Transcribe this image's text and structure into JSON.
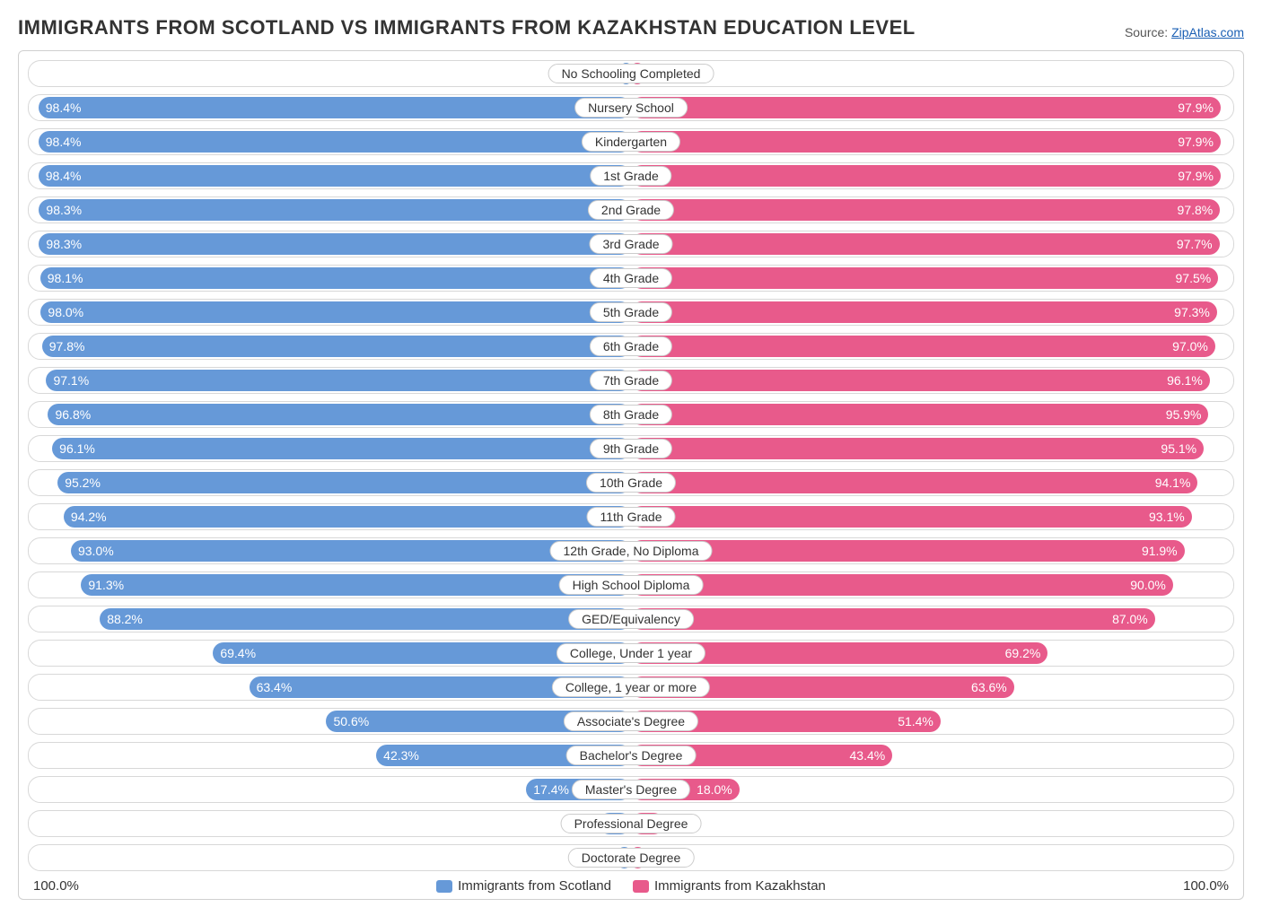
{
  "title": "IMMIGRANTS FROM SCOTLAND VS IMMIGRANTS FROM KAZAKHSTAN EDUCATION LEVEL",
  "source_prefix": "Source: ",
  "source_link": "ZipAtlas.com",
  "chart": {
    "type": "diverging-bar",
    "max_percent": 100.0,
    "axis_label_left": "100.0%",
    "axis_label_right": "100.0%",
    "series_a": {
      "label": "Immigrants from Scotland",
      "color": "#6699d8"
    },
    "series_b": {
      "label": "Immigrants from Kazakhstan",
      "color": "#e85a8b"
    },
    "label_background": "#ffffff",
    "label_border": "#cccccc",
    "row_border": "#d8d8d8",
    "value_fontsize": 14,
    "label_fontsize": 14,
    "rows": [
      {
        "category": "No Schooling Completed",
        "a": 1.6,
        "a_text": "1.6%",
        "b": 2.1,
        "b_text": "2.1%"
      },
      {
        "category": "Nursery School",
        "a": 98.4,
        "a_text": "98.4%",
        "b": 97.9,
        "b_text": "97.9%"
      },
      {
        "category": "Kindergarten",
        "a": 98.4,
        "a_text": "98.4%",
        "b": 97.9,
        "b_text": "97.9%"
      },
      {
        "category": "1st Grade",
        "a": 98.4,
        "a_text": "98.4%",
        "b": 97.9,
        "b_text": "97.9%"
      },
      {
        "category": "2nd Grade",
        "a": 98.3,
        "a_text": "98.3%",
        "b": 97.8,
        "b_text": "97.8%"
      },
      {
        "category": "3rd Grade",
        "a": 98.3,
        "a_text": "98.3%",
        "b": 97.7,
        "b_text": "97.7%"
      },
      {
        "category": "4th Grade",
        "a": 98.1,
        "a_text": "98.1%",
        "b": 97.5,
        "b_text": "97.5%"
      },
      {
        "category": "5th Grade",
        "a": 98.0,
        "a_text": "98.0%",
        "b": 97.3,
        "b_text": "97.3%"
      },
      {
        "category": "6th Grade",
        "a": 97.8,
        "a_text": "97.8%",
        "b": 97.0,
        "b_text": "97.0%"
      },
      {
        "category": "7th Grade",
        "a": 97.1,
        "a_text": "97.1%",
        "b": 96.1,
        "b_text": "96.1%"
      },
      {
        "category": "8th Grade",
        "a": 96.8,
        "a_text": "96.8%",
        "b": 95.9,
        "b_text": "95.9%"
      },
      {
        "category": "9th Grade",
        "a": 96.1,
        "a_text": "96.1%",
        "b": 95.1,
        "b_text": "95.1%"
      },
      {
        "category": "10th Grade",
        "a": 95.2,
        "a_text": "95.2%",
        "b": 94.1,
        "b_text": "94.1%"
      },
      {
        "category": "11th Grade",
        "a": 94.2,
        "a_text": "94.2%",
        "b": 93.1,
        "b_text": "93.1%"
      },
      {
        "category": "12th Grade, No Diploma",
        "a": 93.0,
        "a_text": "93.0%",
        "b": 91.9,
        "b_text": "91.9%"
      },
      {
        "category": "High School Diploma",
        "a": 91.3,
        "a_text": "91.3%",
        "b": 90.0,
        "b_text": "90.0%"
      },
      {
        "category": "GED/Equivalency",
        "a": 88.2,
        "a_text": "88.2%",
        "b": 87.0,
        "b_text": "87.0%"
      },
      {
        "category": "College, Under 1 year",
        "a": 69.4,
        "a_text": "69.4%",
        "b": 69.2,
        "b_text": "69.2%"
      },
      {
        "category": "College, 1 year or more",
        "a": 63.4,
        "a_text": "63.4%",
        "b": 63.6,
        "b_text": "63.6%"
      },
      {
        "category": "Associate's Degree",
        "a": 50.6,
        "a_text": "50.6%",
        "b": 51.4,
        "b_text": "51.4%"
      },
      {
        "category": "Bachelor's Degree",
        "a": 42.3,
        "a_text": "42.3%",
        "b": 43.4,
        "b_text": "43.4%"
      },
      {
        "category": "Master's Degree",
        "a": 17.4,
        "a_text": "17.4%",
        "b": 18.0,
        "b_text": "18.0%"
      },
      {
        "category": "Professional Degree",
        "a": 5.3,
        "a_text": "5.3%",
        "b": 5.5,
        "b_text": "5.5%"
      },
      {
        "category": "Doctorate Degree",
        "a": 2.2,
        "a_text": "2.2%",
        "b": 2.3,
        "b_text": "2.3%"
      }
    ]
  }
}
